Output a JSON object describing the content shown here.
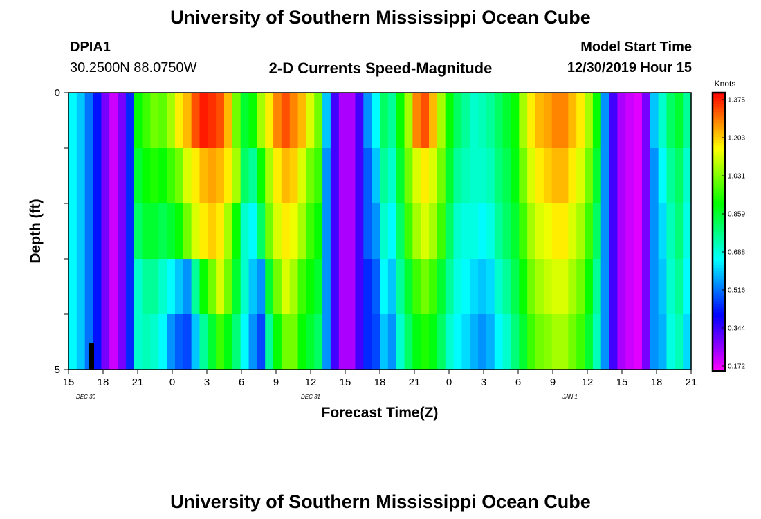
{
  "page": {
    "title": "University of Southern Mississippi Ocean Cube",
    "footer_title": "University of Southern Mississippi Ocean Cube",
    "station_id": "DPIA1",
    "station_coords": "30.2500N 88.0750W",
    "chart_title": "2-D Currents Speed-Magnitude",
    "model_start_label": "Model Start Time",
    "model_start_value": "12/30/2019 Hour 15"
  },
  "chart_data": {
    "type": "heatmap",
    "title": "2-D Currents Speed-Magnitude",
    "xlabel": "Forecast Time(Z)",
    "ylabel": "Depth (ft)",
    "x_tick_labels": [
      "15",
      "18",
      "21",
      "0",
      "3",
      "6",
      "9",
      "12",
      "15",
      "18",
      "21",
      "0",
      "3",
      "6",
      "9",
      "12",
      "15",
      "18",
      "21"
    ],
    "date_labels": [
      {
        "text": "DEC 30",
        "at_hour": 1.5
      },
      {
        "text": "DEC 31",
        "at_hour": 21
      },
      {
        "text": "JAN 1",
        "at_hour": 43.5
      }
    ],
    "y_tick_labels": [
      "0",
      "5"
    ],
    "x_range_hours": [
      0,
      54
    ],
    "y_range_ft": [
      0,
      5
    ],
    "colorbar": {
      "unit": "Knots",
      "ticks": [
        "1.375",
        "1.203",
        "1.031",
        "0.859",
        "0.688",
        "0.516",
        "0.344",
        "0.172"
      ],
      "range": [
        0.172,
        1.375
      ]
    },
    "depth_layers_ft": [
      0,
      1,
      2,
      3,
      4,
      5
    ],
    "speed_knots_by_layer": [
      [
        0.65,
        0.6,
        0.52,
        0.43,
        0.3,
        0.22,
        0.3,
        0.45,
        0.9,
        0.95,
        1.0,
        0.98,
        1.05,
        1.15,
        1.2,
        1.3,
        1.35,
        1.33,
        1.3,
        1.2,
        1.0,
        0.85,
        0.9,
        1.05,
        1.15,
        1.25,
        1.3,
        1.25,
        1.2,
        1.1,
        1.0,
        0.6,
        0.35,
        0.25,
        0.25,
        0.35,
        0.55,
        0.65,
        0.8,
        0.75,
        0.9,
        1.05,
        1.25,
        1.3,
        1.2,
        1.05,
        0.9,
        0.8,
        0.75,
        0.7,
        0.72,
        0.75,
        0.8,
        0.85,
        0.9,
        1.05,
        1.15,
        1.2,
        1.22,
        1.25,
        1.25,
        1.2,
        1.15,
        1.05,
        0.9,
        0.55,
        0.35,
        0.25,
        0.22,
        0.2,
        0.3,
        0.6,
        0.7,
        0.8,
        0.85,
        0.75
      ],
      [
        0.65,
        0.6,
        0.52,
        0.43,
        0.3,
        0.22,
        0.3,
        0.45,
        0.85,
        0.9,
        0.92,
        0.9,
        0.95,
        1.0,
        1.1,
        1.15,
        1.2,
        1.22,
        1.2,
        1.15,
        1.05,
        0.8,
        0.75,
        0.9,
        1.05,
        1.15,
        1.2,
        1.18,
        1.1,
        1.0,
        0.95,
        0.55,
        0.35,
        0.25,
        0.25,
        0.35,
        0.5,
        0.6,
        0.75,
        0.7,
        0.85,
        1.0,
        1.1,
        1.15,
        1.1,
        1.0,
        0.85,
        0.75,
        0.72,
        0.7,
        0.7,
        0.72,
        0.78,
        0.82,
        0.88,
        1.0,
        1.1,
        1.15,
        1.18,
        1.2,
        1.2,
        1.15,
        1.1,
        1.0,
        0.85,
        0.55,
        0.35,
        0.25,
        0.22,
        0.2,
        0.3,
        0.55,
        0.65,
        0.75,
        0.8,
        0.7
      ],
      [
        0.65,
        0.6,
        0.52,
        0.43,
        0.3,
        0.22,
        0.3,
        0.45,
        0.8,
        0.85,
        0.85,
        0.82,
        0.85,
        0.9,
        1.0,
        1.1,
        1.15,
        1.18,
        1.15,
        1.05,
        0.9,
        0.7,
        0.65,
        0.8,
        1.0,
        1.1,
        1.15,
        1.12,
        1.05,
        0.95,
        0.9,
        0.55,
        0.35,
        0.25,
        0.25,
        0.35,
        0.5,
        0.55,
        0.7,
        0.65,
        0.8,
        0.95,
        1.05,
        1.1,
        1.05,
        0.95,
        0.8,
        0.7,
        0.68,
        0.68,
        0.65,
        0.68,
        0.75,
        0.8,
        0.85,
        0.95,
        1.05,
        1.1,
        1.12,
        1.15,
        1.15,
        1.1,
        1.05,
        0.95,
        0.8,
        0.55,
        0.35,
        0.25,
        0.22,
        0.2,
        0.3,
        0.55,
        0.62,
        0.72,
        0.78,
        0.68
      ],
      [
        0.65,
        0.6,
        0.52,
        0.43,
        0.3,
        0.22,
        0.3,
        0.45,
        0.7,
        0.75,
        0.75,
        0.7,
        0.65,
        0.6,
        0.55,
        0.75,
        0.9,
        1.0,
        1.1,
        1.0,
        0.85,
        0.7,
        0.6,
        0.55,
        0.85,
        1.0,
        1.1,
        1.05,
        0.95,
        0.9,
        0.85,
        0.55,
        0.35,
        0.25,
        0.25,
        0.35,
        0.45,
        0.5,
        0.65,
        0.6,
        0.75,
        0.85,
        0.95,
        1.0,
        0.95,
        0.85,
        0.75,
        0.68,
        0.65,
        0.62,
        0.6,
        0.62,
        0.7,
        0.75,
        0.82,
        0.9,
        1.0,
        1.05,
        1.08,
        1.1,
        1.1,
        1.05,
        1.0,
        0.9,
        0.75,
        0.55,
        0.35,
        0.25,
        0.22,
        0.2,
        0.3,
        0.55,
        0.6,
        0.7,
        0.75,
        0.65
      ],
      [
        0.65,
        0.6,
        0.52,
        0.43,
        0.3,
        0.22,
        0.3,
        0.45,
        0.7,
        0.72,
        0.7,
        0.65,
        0.55,
        0.5,
        0.48,
        0.6,
        0.75,
        0.85,
        0.95,
        0.88,
        0.78,
        0.65,
        0.55,
        0.48,
        0.75,
        0.9,
        1.0,
        1.0,
        0.9,
        0.85,
        0.8,
        0.55,
        0.35,
        0.25,
        0.25,
        0.35,
        0.45,
        0.48,
        0.6,
        0.55,
        0.7,
        0.8,
        0.88,
        0.92,
        0.88,
        0.8,
        0.7,
        0.65,
        0.62,
        0.58,
        0.55,
        0.58,
        0.65,
        0.7,
        0.78,
        0.85,
        0.95,
        1.0,
        1.02,
        1.05,
        1.05,
        1.0,
        0.95,
        0.85,
        0.72,
        0.55,
        0.35,
        0.25,
        0.22,
        0.2,
        0.3,
        0.55,
        0.58,
        0.68,
        0.72,
        0.62
      ]
    ]
  }
}
